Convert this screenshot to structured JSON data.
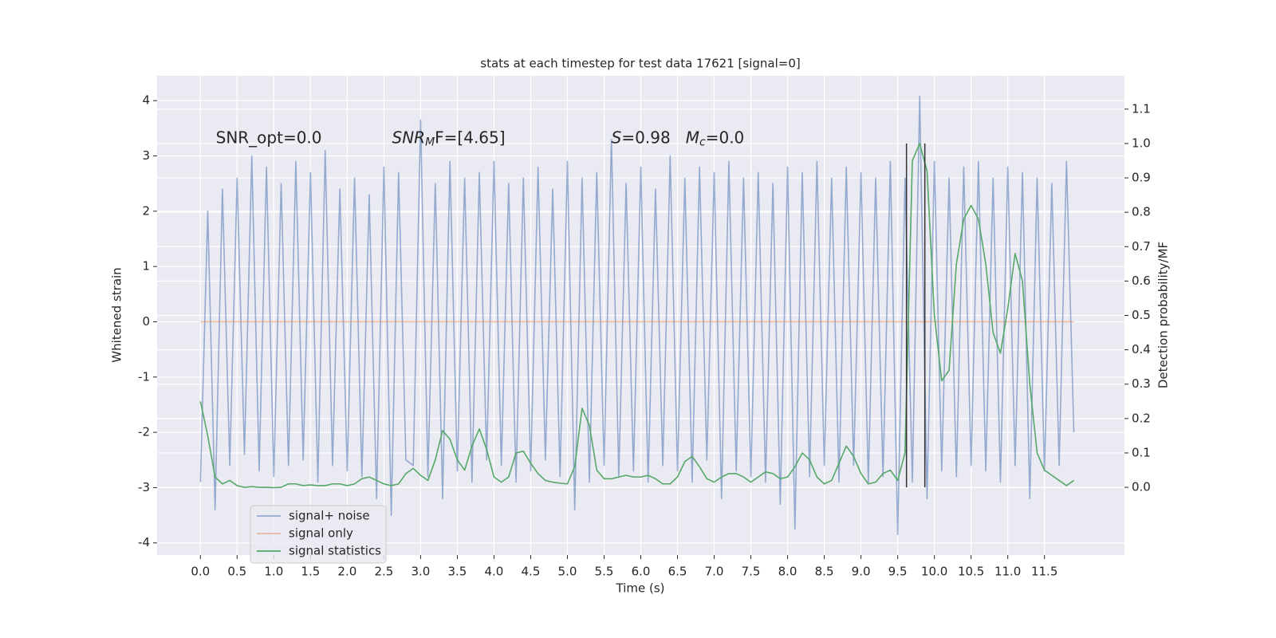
{
  "chart_data": {
    "type": "line",
    "title": "stats at each timestep for test data 17621 [signal=0]",
    "xlabel": "Time (s)",
    "ylabel": "Whitened strain",
    "y2label": "Detection probability/MF",
    "xlim": [
      -0.59,
      12.59
    ],
    "ylim": [
      -4.22,
      4.45
    ],
    "y2lim": [
      -0.197,
      1.197
    ],
    "xticks": [
      {
        "value": 0,
        "label": "0.0"
      },
      0.5,
      {
        "value": 1,
        "label": "1.0"
      },
      1.5,
      {
        "value": 2,
        "label": "2.0"
      },
      2.5,
      {
        "value": 3,
        "label": "3.0"
      },
      3.5,
      {
        "value": 4,
        "label": "4.0"
      },
      4.5,
      {
        "value": 5,
        "label": "5.0"
      },
      5.5,
      {
        "value": 6,
        "label": "6.0"
      },
      6.5,
      {
        "value": 7,
        "label": "7.0"
      },
      7.5,
      {
        "value": 8,
        "label": "8.0"
      },
      8.5,
      {
        "value": 9,
        "label": "9.0"
      },
      9.5,
      {
        "value": 10,
        "label": "10.0"
      },
      10.5,
      {
        "value": 11,
        "label": "11.0"
      },
      11.5
    ],
    "yticks": [
      -4,
      -3,
      -2,
      -1,
      0,
      1,
      2,
      3,
      4
    ],
    "y2ticks": [
      {
        "value": 0,
        "label": "0.0"
      },
      0.1,
      0.2,
      0.3,
      0.4,
      0.5,
      0.6,
      0.7,
      0.8,
      0.9,
      {
        "value": 1,
        "label": "1.0"
      },
      1.1
    ],
    "grid": true,
    "legend": "lower left",
    "x": [
      0,
      0.1,
      0.2,
      0.3,
      0.4,
      0.5,
      0.6,
      0.7,
      0.8,
      0.9,
      1,
      1.1,
      1.2,
      1.3,
      1.4,
      1.5,
      1.6,
      1.7,
      1.8,
      1.9,
      2,
      2.1,
      2.2,
      2.3,
      2.4,
      2.5,
      2.6,
      2.7,
      2.8,
      2.9,
      3,
      3.1,
      3.2,
      3.3,
      3.4,
      3.5,
      3.6,
      3.7,
      3.8,
      3.9,
      4,
      4.1,
      4.2,
      4.3,
      4.4,
      4.5,
      4.6,
      4.7,
      4.8,
      4.9,
      5,
      5.1,
      5.2,
      5.3,
      5.4,
      5.5,
      5.6,
      5.7,
      5.8,
      5.9,
      6,
      6.1,
      6.2,
      6.3,
      6.4,
      6.5,
      6.6,
      6.7,
      6.8,
      6.9,
      7,
      7.1,
      7.2,
      7.3,
      7.4,
      7.5,
      7.6,
      7.7,
      7.8,
      7.9,
      8,
      8.1,
      8.2,
      8.3,
      8.4,
      8.5,
      8.6,
      8.7,
      8.8,
      8.9,
      9,
      9.1,
      9.2,
      9.3,
      9.4,
      9.5,
      9.6,
      9.7,
      9.8,
      9.9,
      10,
      10.1,
      10.2,
      10.3,
      10.4,
      10.5,
      10.6,
      10.7,
      10.8,
      10.9,
      11,
      11.1,
      11.2,
      11.3,
      11.4,
      11.5,
      11.6,
      11.7,
      11.8,
      11.9
    ],
    "series": [
      {
        "name": "signal+ noise",
        "color": "#4c72b0",
        "opacity": 0.55,
        "values": [
          -2.9,
          2.0,
          -3.4,
          2.4,
          -2.6,
          2.6,
          -2.4,
          3.0,
          -2.7,
          2.8,
          -2.8,
          2.5,
          -2.6,
          2.9,
          -2.5,
          2.7,
          -2.9,
          3.1,
          -2.6,
          2.4,
          -2.7,
          2.6,
          -2.8,
          2.3,
          -3.2,
          2.8,
          -3.5,
          2.7,
          -2.5,
          -2.6,
          3.65,
          -2.8,
          2.5,
          -3.2,
          2.9,
          -2.7,
          2.6,
          -2.9,
          2.7,
          -2.5,
          2.9,
          -2.6,
          2.5,
          -2.9,
          2.6,
          -2.7,
          2.8,
          -2.5,
          2.4,
          -2.8,
          2.9,
          -3.4,
          2.6,
          -2.9,
          2.7,
          -2.6,
          3.3,
          -2.8,
          2.5,
          -2.7,
          2.8,
          -2.9,
          2.4,
          -2.6,
          3.0,
          -2.7,
          2.6,
          -2.9,
          2.8,
          -2.5,
          2.7,
          -3.2,
          2.9,
          -2.7,
          2.6,
          -2.8,
          2.7,
          -2.9,
          2.5,
          -3.3,
          2.8,
          -3.75,
          2.7,
          -2.8,
          2.9,
          -2.6,
          2.6,
          -2.9,
          2.8,
          -2.6,
          2.7,
          -2.9,
          2.6,
          -2.8,
          2.9,
          -3.85,
          2.6,
          -2.9,
          4.08,
          -3.2,
          2.9,
          -2.7,
          2.6,
          -2.8,
          2.8,
          -2.6,
          2.9,
          -2.7,
          2.6,
          -2.9,
          2.8,
          -2.6,
          2.7,
          -3.2,
          2.6,
          -2.7,
          2.5,
          -2.6,
          2.9,
          -2.0
        ]
      },
      {
        "name": "signal only",
        "color": "#dd8452",
        "opacity": 0.5,
        "x": [
          0,
          11.9
        ],
        "values": [
          0,
          0
        ]
      },
      {
        "name": "signal statistics",
        "color": "#55a868",
        "opacity": 1,
        "axis": "y2",
        "values": [
          0.25,
          0.15,
          0.03,
          0.01,
          0.02,
          0.005,
          0.0,
          0.002,
          0.0,
          0.0,
          -0.001,
          0.0,
          0.01,
          0.01,
          0.005,
          0.007,
          0.005,
          0.005,
          0.01,
          0.01,
          0.005,
          0.01,
          0.025,
          0.03,
          0.02,
          0.01,
          0.005,
          0.01,
          0.04,
          0.055,
          0.035,
          0.02,
          0.08,
          0.165,
          0.14,
          0.08,
          0.05,
          0.12,
          0.17,
          0.11,
          0.03,
          0.015,
          0.03,
          0.1,
          0.105,
          0.07,
          0.04,
          0.02,
          0.015,
          0.012,
          0.01,
          0.06,
          0.23,
          0.18,
          0.05,
          0.025,
          0.025,
          0.03,
          0.035,
          0.03,
          0.03,
          0.035,
          0.025,
          0.01,
          0.01,
          0.03,
          0.075,
          0.09,
          0.06,
          0.025,
          0.015,
          0.03,
          0.04,
          0.04,
          0.03,
          0.015,
          0.03,
          0.045,
          0.04,
          0.025,
          0.03,
          0.06,
          0.1,
          0.08,
          0.03,
          0.01,
          0.02,
          0.07,
          0.12,
          0.09,
          0.04,
          0.01,
          0.015,
          0.04,
          0.05,
          0.02,
          0.1,
          0.95,
          1.0,
          0.92,
          0.5,
          0.31,
          0.34,
          0.65,
          0.78,
          0.82,
          0.78,
          0.65,
          0.45,
          0.39,
          0.52,
          0.68,
          0.6,
          0.3,
          0.1,
          0.05,
          0.035,
          0.02,
          0.005,
          0.02
        ]
      }
    ],
    "vlines": {
      "x": [
        9.62,
        9.87
      ],
      "axis": "y2",
      "ymin": 0,
      "ymax": 1,
      "color": "#333333"
    },
    "annotations": [
      {
        "x": 0.21,
        "y": 3.32,
        "parts": [
          {
            "text": "SNR_opt=0.0"
          }
        ]
      },
      {
        "x": 2.61,
        "y": 3.32,
        "parts": [
          {
            "text": "SNR",
            "italic": true
          },
          {
            "text": "M",
            "italic": true,
            "sub": true
          },
          {
            "text": "F=[4.65]"
          }
        ]
      },
      {
        "x": 5.6,
        "y": 3.32,
        "parts": [
          {
            "text": "S",
            "italic": true
          },
          {
            "text": "=0.98   "
          },
          {
            "text": "M",
            "italic": true
          },
          {
            "text": "c",
            "italic": true,
            "sub": true
          },
          {
            "text": "=0.0"
          }
        ]
      }
    ]
  }
}
